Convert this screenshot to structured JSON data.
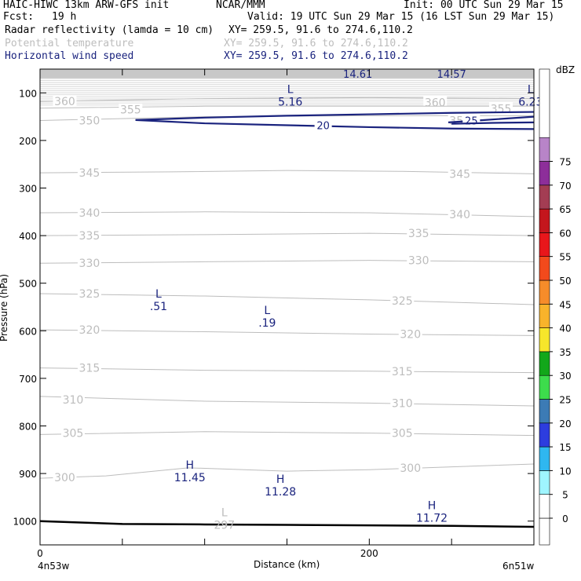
{
  "header": {
    "model": "HAIC-HIWC 13km ARW-GFS init",
    "org": "NCAR/MMM",
    "init": "Init: 00 UTC Sun 29 Mar 15",
    "fcst_label": "Fcst:",
    "fcst_value": "19 h",
    "valid": "Valid: 19 UTC Sun 29 Mar 15 (16 LST Sun 29 Mar 15)",
    "fields": [
      {
        "name": "Radar reflectivity (lamda = 10 cm)",
        "xy": "XY= 259.5, 91.6 to 274.6,110.2",
        "color": "#000000"
      },
      {
        "name": "Potential temperature",
        "xy": "XY= 259.5, 91.6 to 274.6,110.2",
        "color": "#bdbdbd"
      },
      {
        "name": "Horizontal wind speed",
        "xy": "XY= 259.5, 91.6 to 274.6,110.2",
        "color": "#1a237e"
      }
    ]
  },
  "chart_data": {
    "type": "cross-section",
    "ylabel": "Pressure (hPa)",
    "xlabel": "Distance (km)",
    "x_range": [
      0,
      300
    ],
    "y_range": [
      1050,
      50
    ],
    "y_ticks": [
      100,
      200,
      300,
      400,
      500,
      600,
      700,
      800,
      900,
      1000
    ],
    "x_ticks": [
      0,
      200
    ],
    "x_left_label": "4n53w",
    "x_right_label": "6n51w",
    "theta_contours": [
      {
        "value": 360,
        "points": [
          [
            0,
            118
          ],
          [
            100,
            112
          ],
          [
            200,
            110
          ],
          [
            300,
            112
          ]
        ],
        "labels": [
          [
            15,
            118
          ],
          [
            240,
            120
          ]
        ]
      },
      {
        "value": 355,
        "points": [
          [
            0,
            132
          ],
          [
            100,
            128
          ],
          [
            200,
            128
          ],
          [
            300,
            128
          ]
        ],
        "labels": [
          [
            55,
            135
          ],
          [
            280,
            133
          ]
        ]
      },
      {
        "value": 350,
        "points": [
          [
            0,
            158
          ],
          [
            100,
            150
          ],
          [
            200,
            148
          ],
          [
            300,
            148
          ]
        ],
        "labels": [
          [
            30,
            158
          ],
          [
            255,
            158
          ]
        ]
      },
      {
        "value": 345,
        "points": [
          [
            0,
            268
          ],
          [
            80,
            266
          ],
          [
            150,
            263
          ],
          [
            220,
            265
          ],
          [
            300,
            270
          ]
        ],
        "labels": [
          [
            30,
            268
          ],
          [
            255,
            270
          ]
        ]
      },
      {
        "value": 340,
        "points": [
          [
            0,
            352
          ],
          [
            100,
            350
          ],
          [
            200,
            352
          ],
          [
            300,
            360
          ]
        ],
        "labels": [
          [
            30,
            352
          ],
          [
            255,
            355
          ]
        ]
      },
      {
        "value": 335,
        "points": [
          [
            0,
            400
          ],
          [
            100,
            398
          ],
          [
            200,
            395
          ],
          [
            300,
            400
          ]
        ],
        "labels": [
          [
            30,
            400
          ],
          [
            230,
            395
          ]
        ]
      },
      {
        "value": 330,
        "points": [
          [
            0,
            458
          ],
          [
            100,
            455
          ],
          [
            200,
            452
          ],
          [
            300,
            455
          ]
        ],
        "labels": [
          [
            30,
            458
          ],
          [
            230,
            452
          ]
        ]
      },
      {
        "value": 325,
        "points": [
          [
            0,
            522
          ],
          [
            100,
            527
          ],
          [
            200,
            535
          ],
          [
            300,
            545
          ]
        ],
        "labels": [
          [
            30,
            522
          ],
          [
            220,
            537
          ]
        ]
      },
      {
        "value": 320,
        "points": [
          [
            0,
            598
          ],
          [
            100,
            602
          ],
          [
            200,
            607
          ],
          [
            300,
            610
          ]
        ],
        "labels": [
          [
            30,
            598
          ],
          [
            225,
            607
          ]
        ]
      },
      {
        "value": 315,
        "points": [
          [
            0,
            678
          ],
          [
            100,
            683
          ],
          [
            200,
            685
          ],
          [
            300,
            688
          ]
        ],
        "labels": [
          [
            30,
            678
          ],
          [
            220,
            685
          ]
        ]
      },
      {
        "value": 310,
        "points": [
          [
            0,
            738
          ],
          [
            100,
            748
          ],
          [
            200,
            752
          ],
          [
            300,
            758
          ]
        ],
        "labels": [
          [
            20,
            745
          ],
          [
            220,
            752
          ]
        ]
      },
      {
        "value": 305,
        "points": [
          [
            0,
            818
          ],
          [
            100,
            812
          ],
          [
            200,
            815
          ],
          [
            300,
            820
          ]
        ],
        "labels": [
          [
            20,
            815
          ],
          [
            220,
            815
          ]
        ]
      },
      {
        "value": 300,
        "points": [
          [
            0,
            910
          ],
          [
            40,
            905
          ],
          [
            90,
            888
          ],
          [
            150,
            895
          ],
          [
            200,
            892
          ],
          [
            300,
            880
          ]
        ],
        "labels": [
          [
            15,
            908
          ],
          [
            225,
            888
          ]
        ]
      }
    ],
    "wind_contours": [
      {
        "value": 20,
        "points": [
          [
            58,
            157
          ],
          [
            100,
            152
          ],
          [
            150,
            148
          ],
          [
            200,
            145
          ],
          [
            250,
            142
          ],
          [
            300,
            140
          ]
        ],
        "labels": []
      },
      {
        "value": 20,
        "points": [
          [
            58,
            157
          ],
          [
            100,
            164
          ],
          [
            150,
            168
          ],
          [
            200,
            172
          ],
          [
            250,
            175
          ],
          [
            300,
            176
          ]
        ],
        "labels": [
          [
            172,
            168
          ]
        ]
      },
      {
        "value": 25,
        "points": [
          [
            248,
            162
          ],
          [
            270,
            157
          ],
          [
            300,
            150
          ]
        ],
        "labels": [
          [
            262,
            158
          ]
        ]
      },
      {
        "value": 25,
        "points": [
          [
            250,
            165
          ],
          [
            275,
            163
          ],
          [
            300,
            162
          ]
        ],
        "labels": []
      }
    ],
    "terrain": [
      [
        0,
        1000
      ],
      [
        50,
        1006
      ],
      [
        100,
        1007
      ],
      [
        150,
        1008
      ],
      [
        200,
        1009
      ],
      [
        250,
        1010
      ],
      [
        300,
        1012
      ]
    ],
    "extrema": [
      {
        "letter": "L",
        "value": "5.16",
        "x": 152,
        "p": 100,
        "field": "wind"
      },
      {
        "letter": "L",
        "value": "6.23",
        "x": 298,
        "p": 100,
        "field": "wind"
      },
      {
        "letter": "L",
        "value": ".51",
        "x": 72,
        "p": 530,
        "field": "wind"
      },
      {
        "letter": "L",
        "value": ".19",
        "x": 138,
        "p": 565,
        "field": "wind"
      },
      {
        "letter": "H",
        "value": "11.45",
        "x": 91,
        "p": 890,
        "field": "wind"
      },
      {
        "letter": "H",
        "value": "11.28",
        "x": 146,
        "p": 920,
        "field": "wind"
      },
      {
        "letter": "H",
        "value": "11.72",
        "x": 238,
        "p": 975,
        "field": "wind"
      },
      {
        "letter": "L",
        "value": "297",
        "x": 112,
        "p": 990,
        "field": "theta"
      }
    ],
    "top_labels": [
      {
        "value": "14.61",
        "x": 193
      },
      {
        "value": "14.57",
        "x": 250
      }
    ],
    "colorbar": {
      "unit": "dBZ",
      "labels": [
        "0",
        "5",
        "10",
        "15",
        "20",
        "25",
        "30",
        "35",
        "40",
        "45",
        "50",
        "55",
        "60",
        "65",
        "70",
        "75"
      ],
      "colors": [
        "#ffffff",
        "#9ff5ff",
        "#2fb7f0",
        "#2d3ddf",
        "#3c7bb5",
        "#3ddc4c",
        "#12a71a",
        "#f7e62b",
        "#f8b32b",
        "#f68c2a",
        "#f24a1c",
        "#e8161b",
        "#c4161d",
        "#a33d53",
        "#8d2e9a",
        "#b884c8"
      ]
    },
    "colors": {
      "theta": "#bdbdbd",
      "wind": "#1a237e",
      "terrain": "#000000",
      "undergr": "#bdbdbd"
    }
  }
}
